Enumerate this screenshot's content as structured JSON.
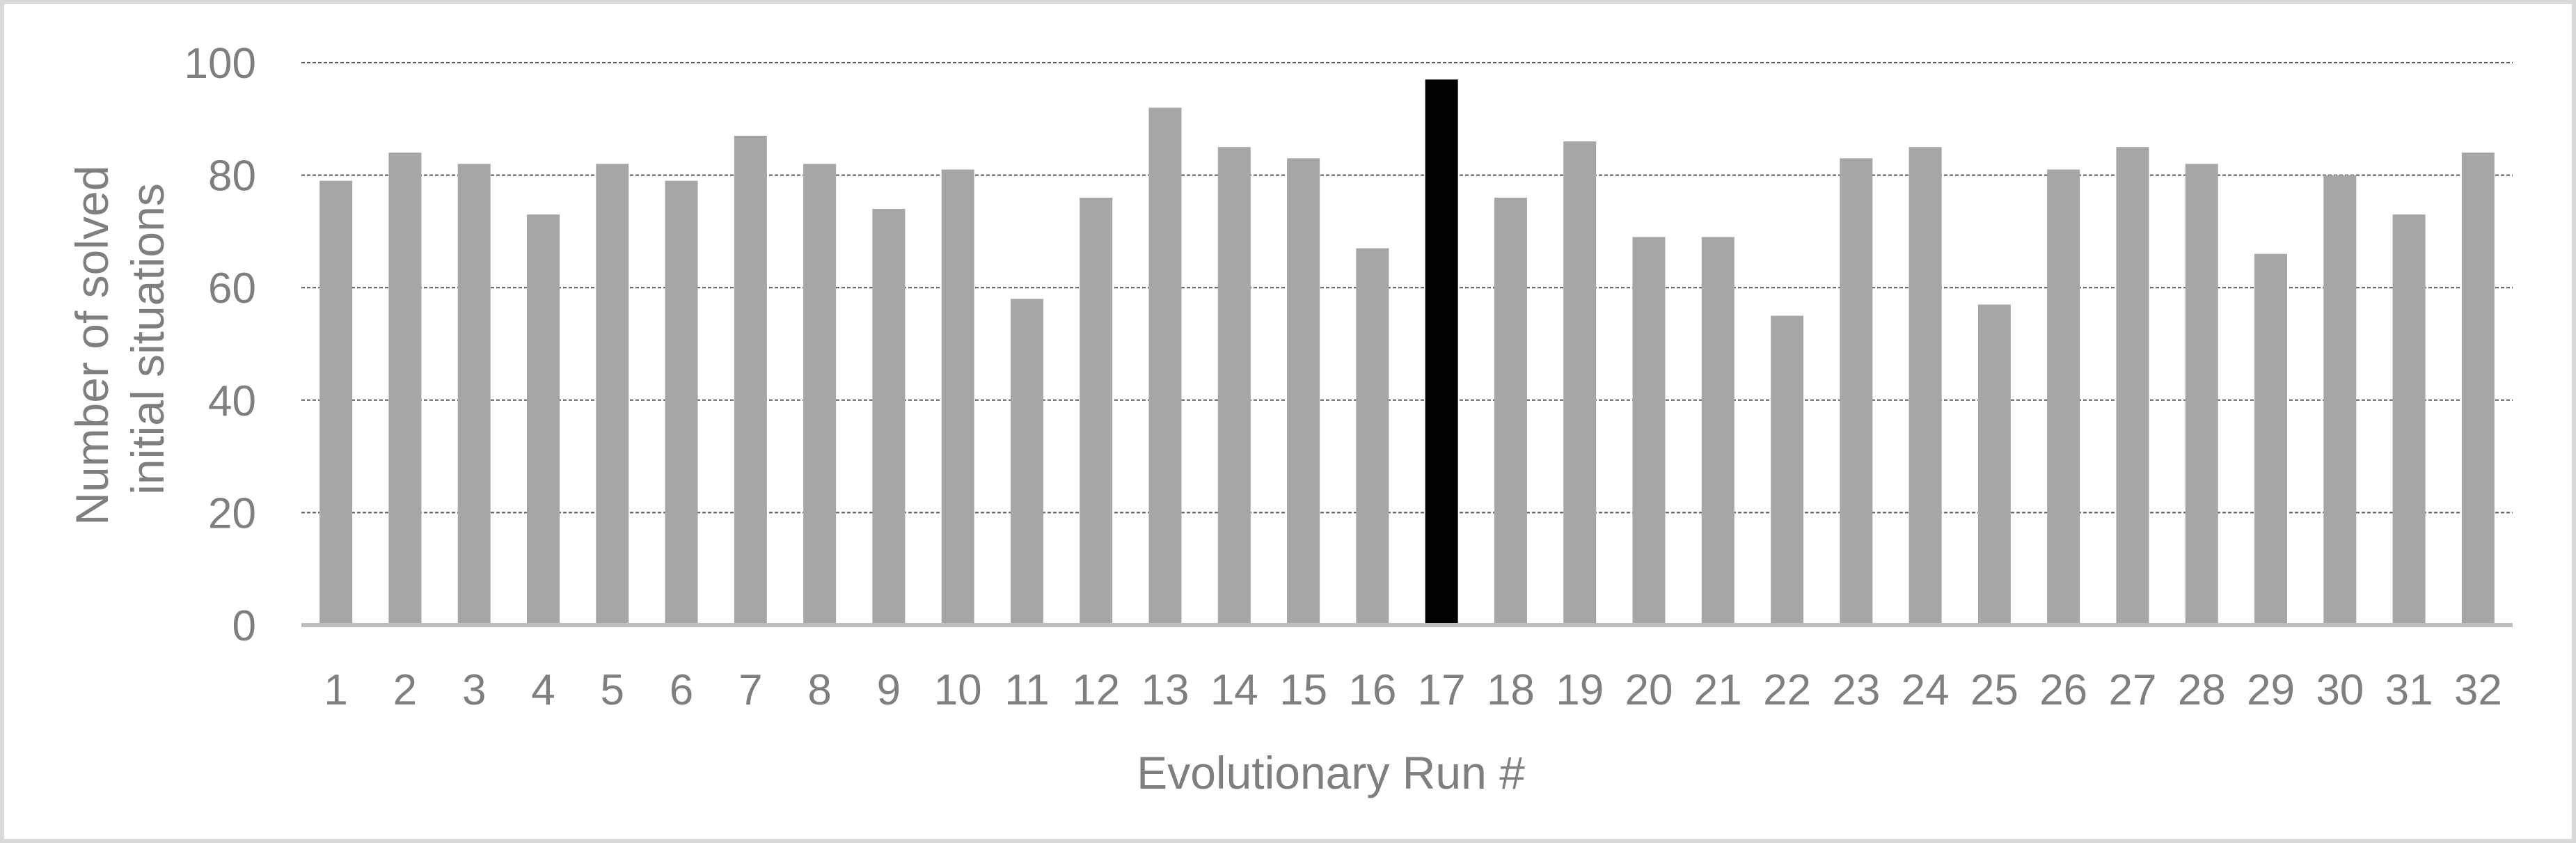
{
  "chart_data": {
    "type": "bar",
    "xlabel": "Evolutionary Run #",
    "ylabel_lines": [
      "Number of solved",
      "initial situations"
    ],
    "ylim": [
      0,
      100
    ],
    "yticks": [
      0,
      20,
      40,
      60,
      80,
      100
    ],
    "grid": true,
    "categories": [
      "1",
      "2",
      "3",
      "4",
      "5",
      "6",
      "7",
      "8",
      "9",
      "10",
      "11",
      "12",
      "13",
      "14",
      "15",
      "16",
      "17",
      "18",
      "19",
      "20",
      "21",
      "22",
      "23",
      "24",
      "25",
      "26",
      "27",
      "28",
      "29",
      "30",
      "31",
      "32"
    ],
    "values": [
      79,
      84,
      82,
      73,
      82,
      79,
      87,
      82,
      74,
      81,
      58,
      76,
      92,
      85,
      83,
      67,
      97,
      76,
      86,
      69,
      69,
      55,
      83,
      85,
      57,
      81,
      85,
      82,
      66,
      80,
      73,
      84
    ],
    "highlight_category": "17",
    "colors": {
      "bar": "#a6a6a6",
      "highlight": "#000000",
      "grid": "#595959",
      "axis": "#bfbfbf",
      "text": "#7f7f7f"
    }
  }
}
